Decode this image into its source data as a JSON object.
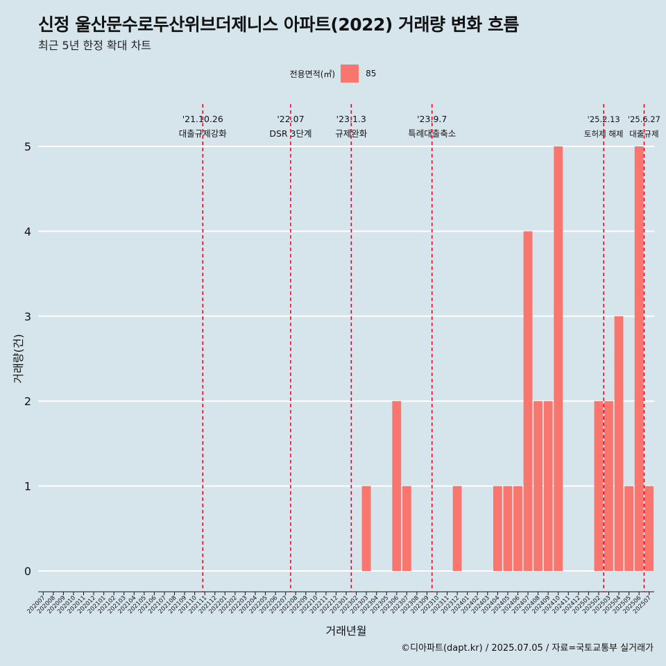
{
  "title": "신정 울산문수로두산위브더제니스 아파트(2022) 거래량 변화 흐름",
  "subtitle": "최근 5년 한정 확대 차트",
  "legend": {
    "title": "전용면적(㎡)",
    "label": "85",
    "color": "#f8766d"
  },
  "caption": "©디아파트(dapt.kr) / 2025.07.05 / 자료=국토교통부 실거래가",
  "chart_data": {
    "type": "bar",
    "xlabel": "거래년월",
    "ylabel": "거래량(건)",
    "ylim": [
      0,
      5
    ],
    "yticks": [
      0,
      1,
      2,
      3,
      4,
      5
    ],
    "categories": [
      "202007",
      "202008",
      "202009",
      "202010",
      "202011",
      "202012",
      "202101",
      "202102",
      "202103",
      "202104",
      "202105",
      "202106",
      "202107",
      "202108",
      "202109",
      "202110",
      "202111",
      "202112",
      "202201",
      "202202",
      "202203",
      "202204",
      "202205",
      "202206",
      "202207",
      "202208",
      "202209",
      "202210",
      "202211",
      "202212",
      "202301",
      "202302",
      "202303",
      "202304",
      "202305",
      "202306",
      "202307",
      "202308",
      "202309",
      "202310",
      "202311",
      "202312",
      "202401",
      "202402",
      "202403",
      "202404",
      "202405",
      "202406",
      "202407",
      "202408",
      "202409",
      "202410",
      "202411",
      "202412",
      "202501",
      "202502",
      "202503",
      "202504",
      "202505",
      "202506",
      "202507"
    ],
    "series": [
      {
        "name": "85",
        "color": "#f8766d",
        "values": [
          null,
          null,
          null,
          null,
          null,
          null,
          null,
          null,
          null,
          null,
          null,
          null,
          null,
          null,
          null,
          null,
          null,
          null,
          null,
          null,
          null,
          null,
          null,
          null,
          null,
          null,
          null,
          null,
          null,
          null,
          null,
          null,
          1,
          0,
          null,
          2,
          1,
          0,
          null,
          null,
          null,
          1,
          0,
          null,
          null,
          1,
          1,
          1,
          4,
          2,
          2,
          5,
          null,
          null,
          null,
          2,
          2,
          3,
          1,
          5,
          1
        ]
      }
    ],
    "annotations": [
      {
        "date": "'21.10.26",
        "label": "대출규제강화",
        "x_index": 15.8
      },
      {
        "date": "'22.07",
        "label": "DSR 3단계",
        "x_index": 24.5
      },
      {
        "date": "'23.1.3",
        "label": "규제완화",
        "x_index": 30.5
      },
      {
        "date": "'23.9.7",
        "label": "특례대출축소",
        "x_index": 38.5
      },
      {
        "date": "'25.2.13",
        "label": "토허제 해제",
        "x_index": 55.5
      },
      {
        "date": "'25.6.27",
        "label": "대출규제",
        "x_index": 59.5
      }
    ],
    "grid": true,
    "legend_position": "top"
  }
}
